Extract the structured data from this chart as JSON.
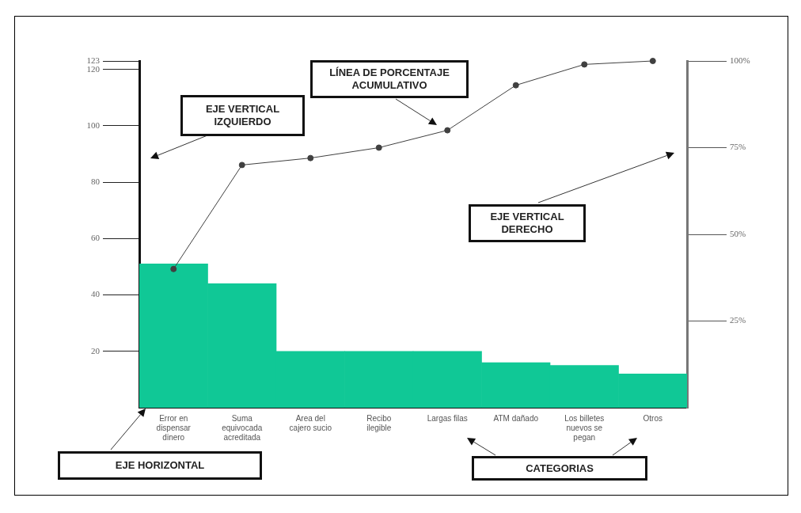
{
  "chart_data": {
    "type": "bar",
    "categories": [
      "Error en dispensar dinero",
      "Suma equivocada acreditada",
      "Area del cajero sucio",
      "Recibo ilegible",
      "Largas filas",
      "ATM dañado",
      "Los billetes nuevos se pegan",
      "Otros"
    ],
    "series": [
      {
        "color": "#10c896",
        "values": [
          51,
          44,
          20,
          20,
          20,
          16,
          15,
          12
        ]
      },
      {
        "type": "line",
        "axis": "y2",
        "color": "#404040",
        "values": [
          40,
          70,
          72,
          75,
          80,
          93,
          99,
          100
        ]
      }
    ],
    "ylim": [
      0,
      123
    ],
    "yticks": [
      20,
      40,
      60,
      80,
      100,
      120,
      123
    ],
    "y2lim": [
      0,
      100
    ],
    "y2ticks": [
      {
        "value": 25,
        "label": "25%"
      },
      {
        "value": 50,
        "label": "50%"
      },
      {
        "value": 75,
        "label": "75%"
      },
      {
        "value": 100,
        "label": "100%"
      }
    ],
    "grid": false,
    "legend": false,
    "marker": "circle",
    "line_style": "solid",
    "annotations": [
      "EJE VERTICAL IZQUIERDO",
      "LÍNEA DE PORCENTAJE ACUMULATIVO",
      "EJE VERTICAL DERECHO",
      "EJE HORIZONTAL",
      "CATEGORIAS"
    ]
  }
}
